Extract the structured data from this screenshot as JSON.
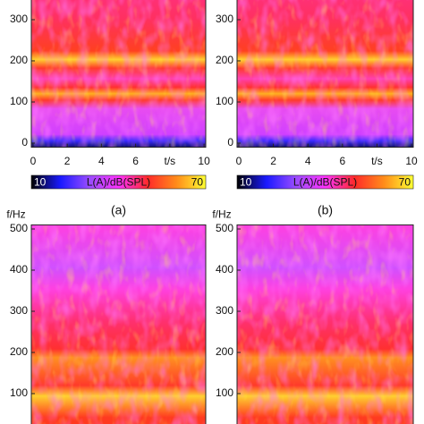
{
  "chart_data": [
    {
      "type": "heatmap",
      "caption": "(a)",
      "xlim": [
        -0.1,
        10.1
      ],
      "ylim": [
        -10,
        510
      ],
      "xticks": [
        0,
        2,
        4,
        6,
        {
          "value": 8,
          "label": "t/s"
        },
        10
      ],
      "yticks": [
        0,
        100,
        200,
        300
      ],
      "colorbar": {
        "label": "L(A)/dB(SPL)",
        "clim": [
          10,
          70
        ],
        "ticks": [
          10,
          70
        ],
        "colorscale": [
          "#000000",
          "#1a1aff",
          "#9a4cff",
          "#ff33ff",
          "#ff2a2a",
          "#ff8c1a",
          "#ffff33"
        ]
      }
    },
    {
      "type": "heatmap",
      "caption": "(b)",
      "xlim": [
        -0.1,
        10.1
      ],
      "ylim": [
        -10,
        510
      ],
      "xticks": [
        0,
        2,
        4,
        6,
        {
          "value": 8,
          "label": "t/s"
        },
        10
      ],
      "yticks": [
        0,
        100,
        200,
        300
      ],
      "colorbar": {
        "label": "L(A)/dB(SPL)",
        "clim": [
          10,
          70
        ],
        "ticks": [
          10,
          70
        ],
        "colorscale": [
          "#000000",
          "#1a1aff",
          "#9a4cff",
          "#ff33ff",
          "#ff2a2a",
          "#ff8c1a",
          "#ffff33"
        ]
      }
    },
    {
      "type": "heatmap",
      "ylabel": "f/Hz",
      "xlim": [
        -0.1,
        10.1
      ],
      "ylim": [
        -10,
        510
      ],
      "yticks": [
        100,
        200,
        300,
        400,
        500
      ]
    },
    {
      "type": "heatmap",
      "ylabel": "f/Hz",
      "xlim": [
        -0.1,
        10.1
      ],
      "ylim": [
        -10,
        510
      ],
      "yticks": [
        100,
        200,
        300,
        400,
        500
      ]
    }
  ]
}
